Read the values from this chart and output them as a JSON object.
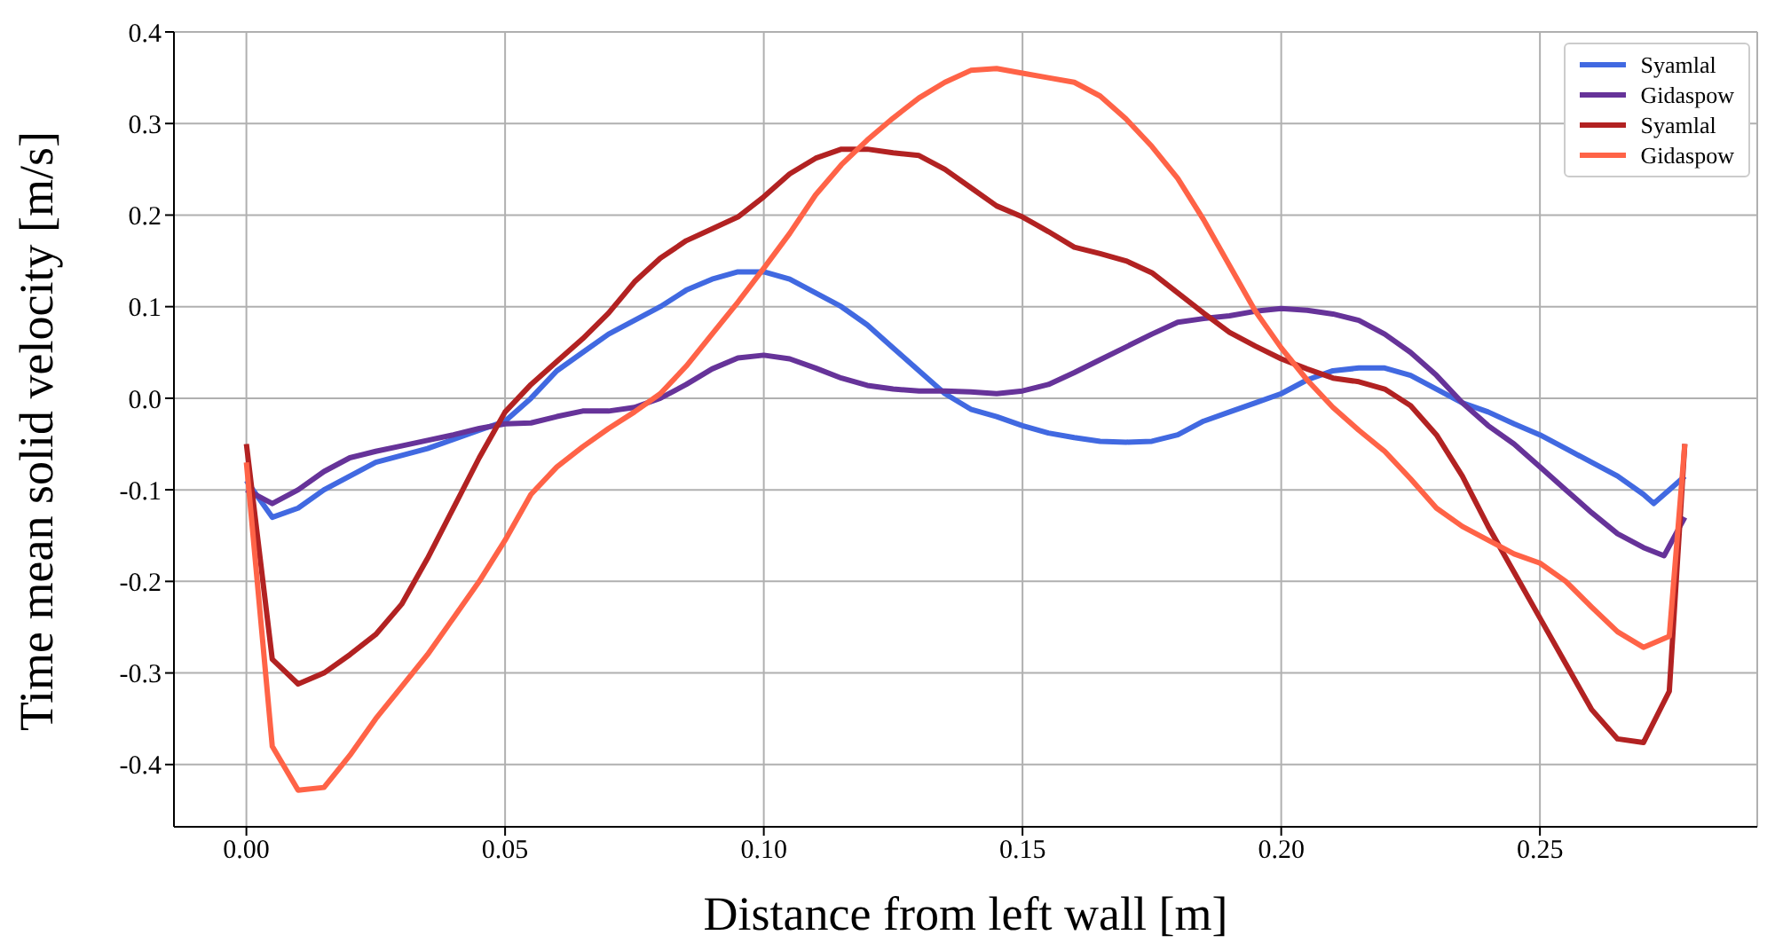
{
  "chart_data": {
    "type": "line",
    "xlabel": "Distance from left wall [m]",
    "ylabel": "Time mean solid velocity [m/s]",
    "xlim": [
      -0.014,
      0.292
    ],
    "ylim": [
      -0.468,
      0.4
    ],
    "xticks": [
      {
        "value": 0,
        "label": "0.00"
      },
      {
        "value": 0.05,
        "label": "0.05"
      },
      {
        "value": 0.1,
        "label": "0.10"
      },
      {
        "value": 0.15,
        "label": "0.15"
      },
      {
        "value": 0.2,
        "label": "0.20"
      },
      {
        "value": 0.25,
        "label": "0.25"
      }
    ],
    "yticks": [
      {
        "value": -0.4,
        "label": "-0.4"
      },
      {
        "value": -0.3,
        "label": "-0.3"
      },
      {
        "value": -0.2,
        "label": "-0.2"
      },
      {
        "value": -0.1,
        "label": "-0.1"
      },
      {
        "value": 0,
        "label": "0.0"
      },
      {
        "value": 0.1,
        "label": "0.1"
      },
      {
        "value": 0.2,
        "label": "0.2"
      },
      {
        "value": 0.3,
        "label": "0.3"
      },
      {
        "value": 0.4,
        "label": "0.4"
      }
    ],
    "grid": true,
    "legend": "top right",
    "marker": "none",
    "line_style": "solid",
    "series": [
      {
        "name": "Syamlal",
        "color": "#4169e1",
        "x": [
          0,
          0.005,
          0.01,
          0.015,
          0.025,
          0.035,
          0.045,
          0.05,
          0.055,
          0.06,
          0.065,
          0.07,
          0.075,
          0.08,
          0.085,
          0.09,
          0.095,
          0.1,
          0.105,
          0.11,
          0.115,
          0.12,
          0.125,
          0.13,
          0.135,
          0.14,
          0.145,
          0.15,
          0.155,
          0.16,
          0.165,
          0.17,
          0.175,
          0.18,
          0.185,
          0.19,
          0.195,
          0.2,
          0.205,
          0.21,
          0.215,
          0.22,
          0.225,
          0.23,
          0.235,
          0.24,
          0.245,
          0.25,
          0.255,
          0.26,
          0.265,
          0.27,
          0.272,
          0.275,
          0.278
        ],
        "values": [
          -0.09,
          -0.13,
          -0.12,
          -0.1,
          -0.07,
          -0.055,
          -0.035,
          -0.025,
          0.0,
          0.03,
          0.05,
          0.07,
          0.085,
          0.1,
          0.118,
          0.13,
          0.138,
          0.138,
          0.13,
          0.115,
          0.1,
          0.08,
          0.055,
          0.03,
          0.005,
          -0.012,
          -0.02,
          -0.03,
          -0.038,
          -0.043,
          -0.047,
          -0.048,
          -0.047,
          -0.04,
          -0.025,
          -0.015,
          -0.005,
          0.005,
          0.02,
          0.03,
          0.033,
          0.033,
          0.025,
          0.01,
          -0.005,
          -0.015,
          -0.028,
          -0.04,
          -0.055,
          -0.07,
          -0.085,
          -0.105,
          -0.115,
          -0.1,
          -0.085
        ]
      },
      {
        "name": "Gidaspow",
        "color": "#663399",
        "x": [
          0,
          0.005,
          0.01,
          0.015,
          0.02,
          0.025,
          0.03,
          0.035,
          0.04,
          0.045,
          0.05,
          0.055,
          0.06,
          0.065,
          0.07,
          0.075,
          0.08,
          0.085,
          0.09,
          0.095,
          0.1,
          0.105,
          0.11,
          0.115,
          0.12,
          0.125,
          0.13,
          0.135,
          0.14,
          0.145,
          0.15,
          0.155,
          0.16,
          0.165,
          0.17,
          0.175,
          0.18,
          0.185,
          0.19,
          0.195,
          0.2,
          0.205,
          0.21,
          0.215,
          0.22,
          0.225,
          0.23,
          0.235,
          0.24,
          0.245,
          0.25,
          0.255,
          0.26,
          0.265,
          0.27,
          0.274,
          0.278
        ],
        "values": [
          -0.1,
          -0.115,
          -0.1,
          -0.08,
          -0.065,
          -0.058,
          -0.052,
          -0.046,
          -0.04,
          -0.033,
          -0.028,
          -0.027,
          -0.02,
          -0.014,
          -0.014,
          -0.01,
          0.0,
          0.015,
          0.032,
          0.044,
          0.047,
          0.043,
          0.033,
          0.022,
          0.014,
          0.01,
          0.008,
          0.008,
          0.007,
          0.005,
          0.008,
          0.015,
          0.028,
          0.042,
          0.056,
          0.07,
          0.083,
          0.087,
          0.09,
          0.095,
          0.098,
          0.096,
          0.092,
          0.085,
          0.07,
          0.05,
          0.025,
          -0.005,
          -0.03,
          -0.05,
          -0.075,
          -0.1,
          -0.125,
          -0.148,
          -0.163,
          -0.172,
          -0.13
        ]
      },
      {
        "name": "Syamlal",
        "color": "#b22222",
        "x": [
          0,
          0.005,
          0.01,
          0.015,
          0.02,
          0.025,
          0.03,
          0.035,
          0.04,
          0.045,
          0.05,
          0.055,
          0.06,
          0.065,
          0.07,
          0.075,
          0.08,
          0.085,
          0.09,
          0.095,
          0.1,
          0.105,
          0.11,
          0.115,
          0.12,
          0.125,
          0.13,
          0.135,
          0.14,
          0.145,
          0.15,
          0.155,
          0.16,
          0.165,
          0.17,
          0.175,
          0.18,
          0.185,
          0.19,
          0.195,
          0.2,
          0.205,
          0.21,
          0.215,
          0.22,
          0.225,
          0.23,
          0.235,
          0.24,
          0.245,
          0.25,
          0.255,
          0.26,
          0.265,
          0.27,
          0.275,
          0.278
        ],
        "values": [
          -0.05,
          -0.285,
          -0.312,
          -0.3,
          -0.28,
          -0.258,
          -0.225,
          -0.175,
          -0.12,
          -0.065,
          -0.015,
          0.015,
          0.04,
          0.065,
          0.093,
          0.127,
          0.153,
          0.172,
          0.185,
          0.198,
          0.22,
          0.245,
          0.262,
          0.272,
          0.272,
          0.268,
          0.265,
          0.25,
          0.23,
          0.21,
          0.198,
          0.182,
          0.165,
          0.158,
          0.15,
          0.137,
          0.115,
          0.093,
          0.072,
          0.057,
          0.043,
          0.032,
          0.022,
          0.018,
          0.01,
          -0.008,
          -0.04,
          -0.085,
          -0.14,
          -0.19,
          -0.24,
          -0.29,
          -0.34,
          -0.372,
          -0.376,
          -0.32,
          -0.05
        ]
      },
      {
        "name": "Gidaspow",
        "color": "#ff6347",
        "x": [
          0,
          0.005,
          0.01,
          0.015,
          0.02,
          0.025,
          0.03,
          0.035,
          0.04,
          0.045,
          0.05,
          0.055,
          0.06,
          0.065,
          0.07,
          0.075,
          0.08,
          0.085,
          0.09,
          0.095,
          0.1,
          0.105,
          0.11,
          0.115,
          0.12,
          0.125,
          0.13,
          0.135,
          0.14,
          0.145,
          0.15,
          0.155,
          0.16,
          0.165,
          0.17,
          0.175,
          0.18,
          0.185,
          0.19,
          0.195,
          0.2,
          0.205,
          0.21,
          0.215,
          0.22,
          0.225,
          0.23,
          0.235,
          0.24,
          0.245,
          0.25,
          0.255,
          0.26,
          0.265,
          0.27,
          0.275,
          0.278
        ],
        "values": [
          -0.07,
          -0.38,
          -0.428,
          -0.425,
          -0.39,
          -0.35,
          -0.315,
          -0.28,
          -0.24,
          -0.2,
          -0.155,
          -0.105,
          -0.075,
          -0.053,
          -0.033,
          -0.015,
          0.005,
          0.035,
          0.07,
          0.105,
          0.142,
          0.18,
          0.222,
          0.255,
          0.282,
          0.306,
          0.328,
          0.345,
          0.358,
          0.36,
          0.355,
          0.35,
          0.345,
          0.33,
          0.305,
          0.275,
          0.24,
          0.195,
          0.145,
          0.095,
          0.055,
          0.02,
          -0.01,
          -0.035,
          -0.058,
          -0.088,
          -0.12,
          -0.14,
          -0.155,
          -0.17,
          -0.18,
          -0.2,
          -0.228,
          -0.255,
          -0.272,
          -0.26,
          -0.05
        ]
      }
    ]
  }
}
